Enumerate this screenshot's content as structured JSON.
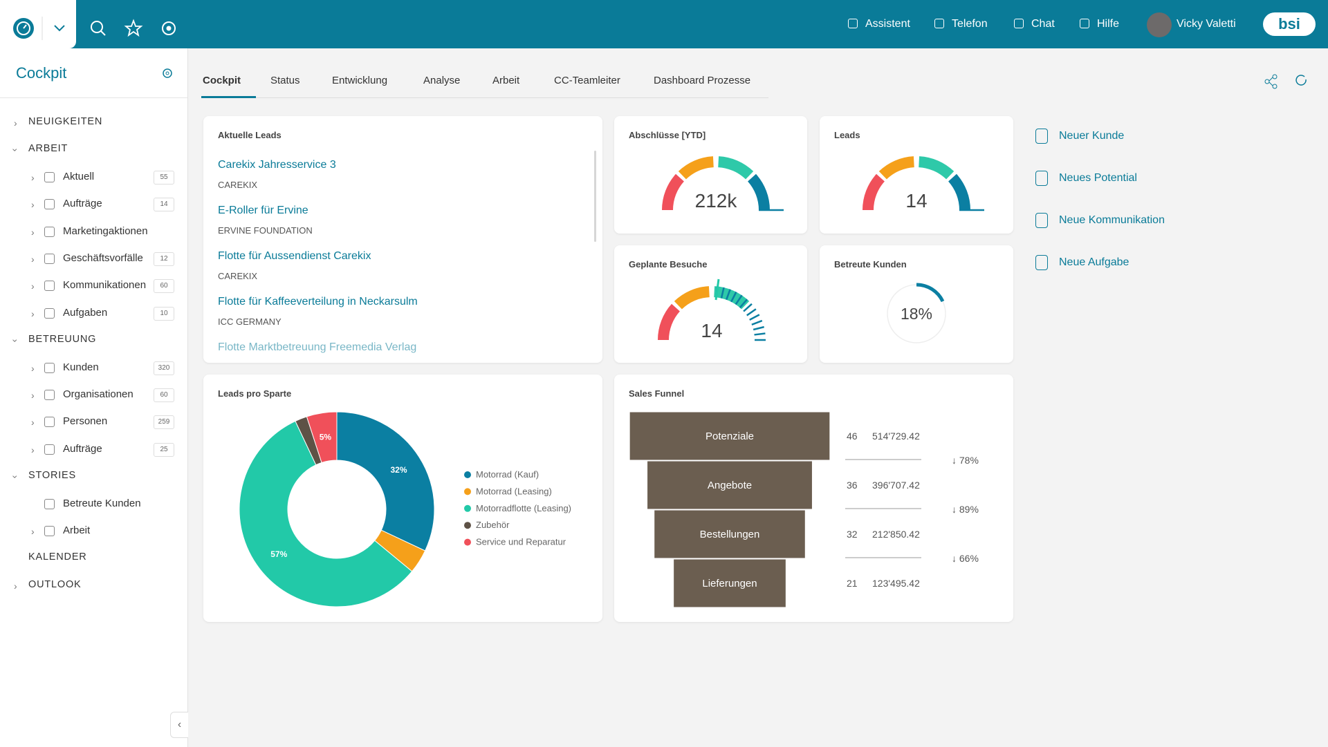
{
  "header": {
    "nav": [
      "Assistent",
      "Telefon",
      "Chat",
      "Hilfe"
    ],
    "user": "Vicky Valetti",
    "logo": "bsi"
  },
  "sidebar": {
    "title": "Cockpit",
    "sections": [
      {
        "label": "NEUIGKEITEN",
        "expanded": false,
        "items": []
      },
      {
        "label": "ARBEIT",
        "expanded": true,
        "items": [
          {
            "label": "Aktuell",
            "count": 55
          },
          {
            "label": "Aufträge",
            "count": 14
          },
          {
            "label": "Marketingaktionen"
          },
          {
            "label": "Geschäftsvorfälle",
            "count": 12
          },
          {
            "label": "Kommunikationen",
            "count": 60
          },
          {
            "label": "Aufgaben",
            "count": 10
          }
        ]
      },
      {
        "label": "BETREUUNG",
        "expanded": true,
        "items": [
          {
            "label": "Kunden",
            "count": 320
          },
          {
            "label": "Organisationen",
            "count": 60
          },
          {
            "label": "Personen",
            "count": 259
          },
          {
            "label": "Aufträge",
            "count": 25
          }
        ]
      },
      {
        "label": "STORIES",
        "expanded": true,
        "items": [
          {
            "label": "Betreute Kunden",
            "leaf": true
          },
          {
            "label": "Arbeit"
          }
        ]
      },
      {
        "label": "KALENDER",
        "leaf": true,
        "items": []
      },
      {
        "label": "OUTLOOK",
        "expanded": false,
        "items": []
      }
    ]
  },
  "tabs": [
    "Cockpit",
    "Status",
    "Entwicklung",
    "Analyse",
    "Arbeit",
    "CC-Teamleiter",
    "Dashboard Prozesse"
  ],
  "active_tab": 0,
  "leads": {
    "title": "Aktuelle Leads",
    "items": [
      {
        "title": "Carekix Jahresservice 3",
        "company": "CAREKIX"
      },
      {
        "title": "E-Roller für Ervine",
        "company": "ERVINE FOUNDATION"
      },
      {
        "title": "Flotte für Aussendienst Carekix",
        "company": "CAREKIX"
      },
      {
        "title": "Flotte für Kaffeeverteilung in Neckarsulm",
        "company": "ICC GERMANY"
      },
      {
        "title": "Flotte Marktbetreuung Freemedia Verlag"
      }
    ]
  },
  "gauges": [
    {
      "title": "Abschlüsse [YTD]",
      "value_label": "212k"
    },
    {
      "title": "Leads",
      "value_label": "14"
    },
    {
      "title": "Geplante Besuche",
      "value_label": "14"
    }
  ],
  "ring": {
    "title": "Betreute Kunden",
    "value": 18,
    "value_label": "18%"
  },
  "donut": {
    "type": "pie",
    "title": "Leads pro Sparte",
    "categories": [
      "Motorrad (Kauf)",
      "Motorrad (Leasing)",
      "Motorradflotte (Leasing)",
      "Zubehör",
      "Service und Reparatur"
    ],
    "values": [
      32,
      4,
      57,
      2,
      5
    ],
    "value_labels": [
      "32%",
      null,
      "57%",
      null,
      "5%"
    ],
    "colors": [
      "#0b7fa2",
      "#f5a01a",
      "#22c9a8",
      "#5e5246",
      "#f0505a"
    ]
  },
  "funnel": {
    "title": "Sales Funnel",
    "stages": [
      "Potenziale",
      "Angebote",
      "Bestellungen",
      "Lieferungen"
    ],
    "counts": [
      46,
      36,
      32,
      21
    ],
    "amounts": [
      "514'729.42",
      "396'707.42",
      "212'850.42",
      "123'495.42"
    ],
    "conversions": [
      "↓ 78%",
      "↓ 89%",
      "↓ 66%"
    ],
    "color": "#6b5e50"
  },
  "actions": [
    "Neuer Kunde",
    "Neues Potential",
    "Neue Kommunikation",
    "Neue Aufgabe"
  ]
}
